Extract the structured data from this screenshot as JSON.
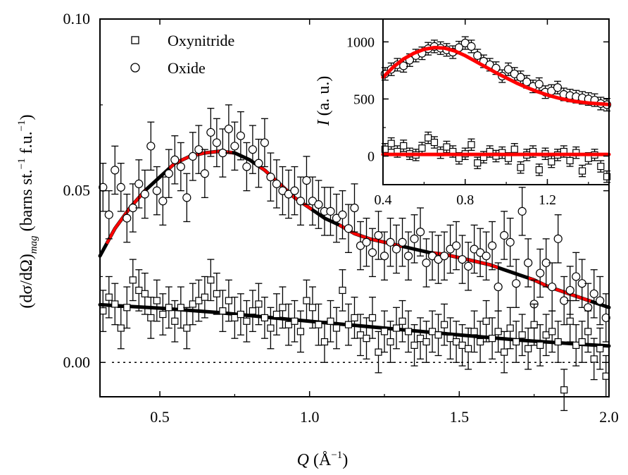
{
  "chart_data": [
    {
      "type": "scatter",
      "panel": "main",
      "xlabel_symbol": "Q",
      "xlabel_unit": " (Å",
      "xlabel_unit_sup": "−1",
      "xlabel_unit_close": ")",
      "ylabel_main": "(dσ/dΩ)",
      "ylabel_sub": "mag",
      "ylabel_units_open": "  (barns st.",
      "ylabel_units_sup": "−1",
      "ylabel_units_close": " f.u.",
      "ylabel_units_sup2": "−1",
      "ylabel_units_end": ")",
      "xlim": [
        0.3,
        2.0
      ],
      "ylim": [
        -0.01,
        0.1
      ],
      "xticks": [
        0.5,
        1.0,
        1.5,
        2.0
      ],
      "xtick_labels": [
        "0.5",
        "1.0",
        "1.5",
        "2.0"
      ],
      "yticks": [
        0.0,
        0.05,
        0.1
      ],
      "ytick_labels": [
        "0.00",
        "0.05",
        "0.10"
      ],
      "zero_line": 0.0,
      "legend": [
        "Oxynitride",
        "Oxide"
      ],
      "series": [
        {
          "name": "Oxide",
          "marker": "circle",
          "x": [
            0.31,
            0.33,
            0.35,
            0.37,
            0.39,
            0.41,
            0.43,
            0.45,
            0.47,
            0.49,
            0.51,
            0.53,
            0.55,
            0.57,
            0.59,
            0.61,
            0.63,
            0.65,
            0.67,
            0.69,
            0.71,
            0.73,
            0.75,
            0.77,
            0.79,
            0.81,
            0.83,
            0.85,
            0.87,
            0.89,
            0.91,
            0.93,
            0.95,
            0.97,
            0.99,
            1.01,
            1.03,
            1.05,
            1.07,
            1.09,
            1.11,
            1.13,
            1.15,
            1.17,
            1.19,
            1.21,
            1.23,
            1.25,
            1.27,
            1.29,
            1.31,
            1.33,
            1.35,
            1.37,
            1.39,
            1.41,
            1.43,
            1.45,
            1.47,
            1.49,
            1.51,
            1.53,
            1.55,
            1.57,
            1.59,
            1.61,
            1.63,
            1.65,
            1.67,
            1.69,
            1.71,
            1.73,
            1.75,
            1.77,
            1.79,
            1.81,
            1.83,
            1.85,
            1.87,
            1.89,
            1.91,
            1.93,
            1.95,
            1.97,
            1.99
          ],
          "y": [
            0.051,
            0.043,
            0.056,
            0.051,
            0.042,
            0.045,
            0.052,
            0.049,
            0.063,
            0.05,
            0.047,
            0.055,
            0.059,
            0.057,
            0.048,
            0.06,
            0.062,
            0.055,
            0.067,
            0.064,
            0.061,
            0.068,
            0.063,
            0.066,
            0.057,
            0.062,
            0.058,
            0.064,
            0.054,
            0.052,
            0.05,
            0.049,
            0.05,
            0.047,
            0.053,
            0.047,
            0.046,
            0.044,
            0.044,
            0.042,
            0.043,
            0.039,
            0.045,
            0.034,
            0.035,
            0.032,
            0.037,
            0.031,
            0.035,
            0.033,
            0.035,
            0.031,
            0.036,
            0.038,
            0.029,
            0.031,
            0.03,
            0.031,
            0.033,
            0.034,
            0.03,
            0.028,
            0.033,
            0.032,
            0.031,
            0.034,
            0.022,
            0.037,
            0.035,
            0.023,
            0.044,
            0.029,
            0.017,
            0.026,
            0.029,
            0.022,
            0.036,
            0.018,
            0.021,
            0.025,
            0.023,
            0.016,
            0.02,
            0.018,
            0.013
          ],
          "yerr": 0.007
        },
        {
          "name": "Oxynitride",
          "marker": "square",
          "x": [
            0.31,
            0.33,
            0.35,
            0.37,
            0.39,
            0.41,
            0.43,
            0.45,
            0.47,
            0.49,
            0.51,
            0.53,
            0.55,
            0.57,
            0.59,
            0.61,
            0.63,
            0.65,
            0.67,
            0.69,
            0.71,
            0.73,
            0.75,
            0.77,
            0.79,
            0.81,
            0.83,
            0.85,
            0.87,
            0.89,
            0.91,
            0.93,
            0.95,
            0.97,
            0.99,
            1.01,
            1.03,
            1.05,
            1.07,
            1.09,
            1.11,
            1.13,
            1.15,
            1.17,
            1.19,
            1.21,
            1.23,
            1.25,
            1.27,
            1.29,
            1.31,
            1.33,
            1.35,
            1.37,
            1.39,
            1.41,
            1.43,
            1.45,
            1.47,
            1.49,
            1.51,
            1.53,
            1.55,
            1.57,
            1.59,
            1.61,
            1.63,
            1.65,
            1.67,
            1.69,
            1.71,
            1.73,
            1.75,
            1.77,
            1.79,
            1.81,
            1.83,
            1.85,
            1.87,
            1.89,
            1.91,
            1.93,
            1.95,
            1.97,
            1.99
          ],
          "y": [
            0.015,
            0.019,
            0.017,
            0.01,
            0.016,
            0.024,
            0.021,
            0.02,
            0.013,
            0.018,
            0.014,
            0.016,
            0.012,
            0.016,
            0.01,
            0.017,
            0.018,
            0.019,
            0.024,
            0.02,
            0.015,
            0.018,
            0.013,
            0.014,
            0.012,
            0.015,
            0.017,
            0.013,
            0.01,
            0.014,
            0.016,
            0.011,
            0.012,
            0.009,
            0.018,
            0.016,
            0.011,
            0.006,
            0.012,
            0.01,
            0.021,
            0.011,
            0.013,
            0.008,
            0.007,
            0.013,
            0.003,
            0.009,
            0.006,
            0.01,
            0.012,
            0.009,
            0.005,
            0.007,
            0.006,
            0.009,
            0.008,
            0.011,
            0.007,
            0.006,
            0.005,
            0.004,
            0.009,
            0.006,
            0.012,
            0.007,
            0.009,
            0.003,
            0.01,
            0.006,
            0.008,
            0.004,
            0.011,
            0.005,
            0.008,
            0.009,
            0.006,
            -0.008,
            0.012,
            0.005,
            0.006,
            0.009,
            0.001,
            0.004,
            -0.004
          ],
          "yerr": 0.006
        }
      ],
      "fits": [
        {
          "name": "Oxide fit",
          "color": "#000000",
          "color_alt": "#ff0000",
          "x": [
            0.3,
            0.35,
            0.4,
            0.45,
            0.5,
            0.55,
            0.6,
            0.65,
            0.7,
            0.75,
            0.8,
            0.85,
            0.9,
            0.95,
            1.0,
            1.05,
            1.1,
            1.15,
            1.2,
            1.25,
            1.3,
            1.35,
            1.4,
            1.45,
            1.5,
            1.55,
            1.6,
            1.65,
            1.7,
            1.75,
            1.8,
            1.85,
            1.9,
            1.95,
            2.0
          ],
          "y": [
            0.031,
            0.039,
            0.045,
            0.05,
            0.054,
            0.058,
            0.06,
            0.061,
            0.0615,
            0.061,
            0.059,
            0.056,
            0.052,
            0.048,
            0.045,
            0.042,
            0.04,
            0.0375,
            0.036,
            0.035,
            0.034,
            0.033,
            0.032,
            0.0315,
            0.0305,
            0.0295,
            0.0285,
            0.027,
            0.0255,
            0.024,
            0.022,
            0.0205,
            0.019,
            0.0175,
            0.016
          ]
        },
        {
          "name": "Oxynitride fit",
          "color": "#000000",
          "x": [
            0.3,
            0.5,
            0.7,
            0.9,
            1.1,
            1.3,
            1.5,
            1.7,
            1.9,
            2.0
          ],
          "y": [
            0.0168,
            0.0158,
            0.0145,
            0.0128,
            0.0112,
            0.0096,
            0.008,
            0.0065,
            0.0053,
            0.0048
          ]
        }
      ]
    },
    {
      "type": "scatter",
      "panel": "inset",
      "ylabel_symbol": "I",
      "ylabel_rest": " (a. u.)",
      "xlim": [
        0.4,
        1.5
      ],
      "ylim": [
        -250,
        1200
      ],
      "xticks": [
        0.4,
        0.8,
        1.2
      ],
      "xtick_labels": [
        "0.4",
        "0.8",
        "1.2"
      ],
      "yticks": [
        0,
        500,
        1000
      ],
      "ytick_labels": [
        "0",
        "500",
        "1000"
      ],
      "series": [
        {
          "name": "Oxide",
          "marker": "circle",
          "x": [
            0.41,
            0.44,
            0.47,
            0.5,
            0.53,
            0.56,
            0.59,
            0.62,
            0.65,
            0.68,
            0.71,
            0.74,
            0.77,
            0.8,
            0.83,
            0.86,
            0.89,
            0.92,
            0.95,
            0.98,
            1.01,
            1.04,
            1.07,
            1.1,
            1.13,
            1.16,
            1.19,
            1.22,
            1.25,
            1.28,
            1.31,
            1.34,
            1.37,
            1.4,
            1.43,
            1.46,
            1.49
          ],
          "y": [
            720,
            760,
            800,
            790,
            840,
            880,
            900,
            940,
            960,
            945,
            930,
            910,
            950,
            990,
            960,
            880,
            830,
            800,
            770,
            700,
            760,
            720,
            690,
            650,
            610,
            630,
            560,
            570,
            600,
            540,
            530,
            520,
            510,
            500,
            490,
            460,
            450
          ],
          "yerr": 55
        },
        {
          "name": "Oxynitride",
          "marker": "square",
          "x": [
            0.41,
            0.44,
            0.47,
            0.5,
            0.53,
            0.56,
            0.59,
            0.62,
            0.65,
            0.68,
            0.71,
            0.74,
            0.77,
            0.8,
            0.83,
            0.86,
            0.89,
            0.92,
            0.95,
            0.98,
            1.01,
            1.04,
            1.07,
            1.1,
            1.13,
            1.16,
            1.19,
            1.22,
            1.25,
            1.28,
            1.31,
            1.34,
            1.37,
            1.4,
            1.43,
            1.46,
            1.49
          ],
          "y": [
            60,
            110,
            40,
            90,
            20,
            10,
            70,
            160,
            120,
            30,
            80,
            40,
            -20,
            20,
            100,
            -60,
            -10,
            40,
            0,
            30,
            -20,
            60,
            -100,
            10,
            40,
            -120,
            20,
            -50,
            10,
            40,
            -40,
            30,
            -130,
            -20,
            10,
            -90,
            -180
          ],
          "yerr": 50
        }
      ],
      "fits": [
        {
          "name": "Oxide fit",
          "color": "#ff0000",
          "x": [
            0.4,
            0.45,
            0.5,
            0.55,
            0.6,
            0.65,
            0.7,
            0.75,
            0.8,
            0.85,
            0.9,
            0.95,
            1.0,
            1.05,
            1.1,
            1.15,
            1.2,
            1.25,
            1.3,
            1.35,
            1.4,
            1.45,
            1.5
          ],
          "y": [
            690,
            780,
            850,
            900,
            935,
            950,
            945,
            920,
            880,
            830,
            780,
            730,
            685,
            640,
            600,
            565,
            535,
            510,
            490,
            475,
            465,
            458,
            452
          ]
        },
        {
          "name": "Oxynitride fit",
          "color": "#ff0000",
          "x": [
            0.4,
            1.5
          ],
          "y": [
            15,
            15
          ]
        }
      ]
    }
  ]
}
